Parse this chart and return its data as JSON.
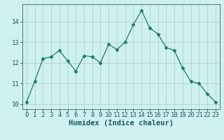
{
  "x": [
    0,
    1,
    2,
    3,
    4,
    5,
    6,
    7,
    8,
    9,
    10,
    11,
    12,
    13,
    14,
    15,
    16,
    17,
    18,
    19,
    20,
    21,
    22,
    23
  ],
  "y": [
    10.1,
    11.1,
    12.2,
    12.3,
    12.6,
    12.1,
    11.6,
    12.35,
    12.3,
    12.0,
    12.9,
    12.65,
    13.0,
    13.85,
    14.55,
    13.7,
    13.4,
    12.75,
    12.6,
    11.75,
    11.1,
    11.0,
    10.5,
    10.1
  ],
  "xlabel": "Humidex (Indice chaleur)",
  "xlim": [
    -0.5,
    23.5
  ],
  "ylim": [
    9.75,
    14.85
  ],
  "yticks": [
    10,
    11,
    12,
    13,
    14
  ],
  "xticks": [
    0,
    1,
    2,
    3,
    4,
    5,
    6,
    7,
    8,
    9,
    10,
    11,
    12,
    13,
    14,
    15,
    16,
    17,
    18,
    19,
    20,
    21,
    22,
    23
  ],
  "line_color": "#1a7a6a",
  "marker": "D",
  "marker_size": 2.5,
  "bg_color": "#cef0f0",
  "grid_color": "#b0c8c8",
  "xlabel_fontsize": 7.5,
  "tick_fontsize": 6.5
}
